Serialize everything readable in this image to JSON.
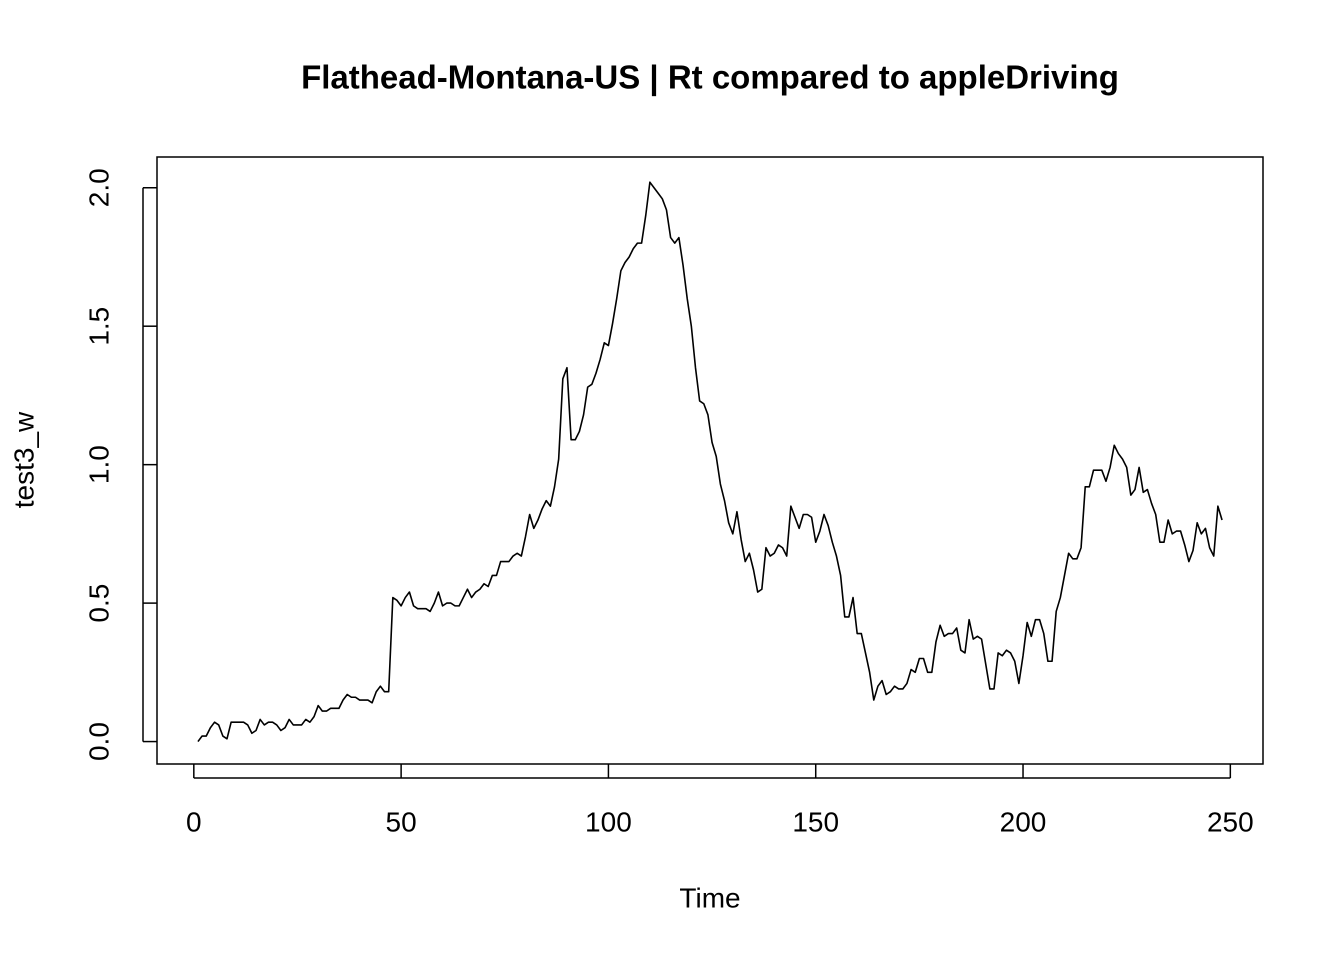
{
  "chart_data": {
    "type": "line",
    "title": "Flathead-Montana-US | Rt compared to appleDriving",
    "x_label": "Time",
    "y_label": "test3_w",
    "x": [
      1,
      2,
      3,
      4,
      5,
      6,
      7,
      8,
      9,
      10,
      11,
      12,
      13,
      14,
      15,
      16,
      17,
      18,
      19,
      20,
      21,
      22,
      23,
      24,
      25,
      26,
      27,
      28,
      29,
      30,
      31,
      32,
      33,
      34,
      35,
      36,
      37,
      38,
      39,
      40,
      41,
      42,
      43,
      44,
      45,
      46,
      47,
      48,
      49,
      50,
      51,
      52,
      53,
      54,
      55,
      56,
      57,
      58,
      59,
      60,
      61,
      62,
      63,
      64,
      65,
      66,
      67,
      68,
      69,
      70,
      71,
      72,
      73,
      74,
      75,
      76,
      77,
      78,
      79,
      80,
      81,
      82,
      83,
      84,
      85,
      86,
      87,
      88,
      89,
      90,
      91,
      92,
      93,
      94,
      95,
      96,
      97,
      98,
      99,
      100,
      101,
      102,
      103,
      104,
      105,
      106,
      107,
      108,
      109,
      110,
      111,
      112,
      113,
      114,
      115,
      116,
      117,
      118,
      119,
      120,
      121,
      122,
      123,
      124,
      125,
      126,
      127,
      128,
      129,
      130,
      131,
      132,
      133,
      134,
      135,
      136,
      137,
      138,
      139,
      140,
      141,
      142,
      143,
      144,
      145,
      146,
      147,
      148,
      149,
      150,
      151,
      152,
      153,
      154,
      155,
      156,
      157,
      158,
      159,
      160,
      161,
      162,
      163,
      164,
      165,
      166,
      167,
      168,
      169,
      170,
      171,
      172,
      173,
      174,
      175,
      176,
      177,
      178,
      179,
      180,
      181,
      182,
      183,
      184,
      185,
      186,
      187,
      188,
      189,
      190,
      191,
      192,
      193,
      194,
      195,
      196,
      197,
      198,
      199,
      200,
      201,
      202,
      203,
      204,
      205,
      206,
      207,
      208,
      209,
      210,
      211,
      212,
      213,
      214,
      215,
      216,
      217,
      218,
      219,
      220,
      221,
      222,
      223,
      224,
      225,
      226,
      227,
      228,
      229,
      230,
      231,
      232,
      233,
      234,
      235,
      236,
      237,
      238,
      239,
      240,
      241,
      242,
      243,
      244,
      245,
      246,
      247,
      248
    ],
    "values": [
      0.0,
      0.02,
      0.02,
      0.05,
      0.07,
      0.06,
      0.02,
      0.01,
      0.07,
      0.07,
      0.07,
      0.07,
      0.06,
      0.03,
      0.04,
      0.08,
      0.06,
      0.07,
      0.07,
      0.06,
      0.04,
      0.05,
      0.08,
      0.06,
      0.06,
      0.06,
      0.08,
      0.07,
      0.09,
      0.13,
      0.11,
      0.11,
      0.12,
      0.12,
      0.12,
      0.15,
      0.17,
      0.16,
      0.16,
      0.15,
      0.15,
      0.15,
      0.14,
      0.18,
      0.2,
      0.18,
      0.18,
      0.52,
      0.51,
      0.49,
      0.52,
      0.54,
      0.49,
      0.48,
      0.48,
      0.48,
      0.47,
      0.5,
      0.54,
      0.49,
      0.5,
      0.5,
      0.49,
      0.49,
      0.52,
      0.55,
      0.52,
      0.54,
      0.55,
      0.57,
      0.56,
      0.6,
      0.6,
      0.65,
      0.65,
      0.65,
      0.67,
      0.68,
      0.67,
      0.74,
      0.82,
      0.77,
      0.8,
      0.84,
      0.87,
      0.85,
      0.92,
      1.02,
      1.31,
      1.35,
      1.09,
      1.09,
      1.12,
      1.18,
      1.28,
      1.29,
      1.33,
      1.38,
      1.44,
      1.43,
      1.51,
      1.6,
      1.7,
      1.73,
      1.75,
      1.78,
      1.8,
      1.8,
      1.9,
      2.02,
      2.0,
      1.98,
      1.96,
      1.92,
      1.82,
      1.8,
      1.82,
      1.72,
      1.6,
      1.5,
      1.35,
      1.23,
      1.22,
      1.18,
      1.08,
      1.03,
      0.93,
      0.87,
      0.79,
      0.75,
      0.83,
      0.73,
      0.65,
      0.68,
      0.62,
      0.54,
      0.55,
      0.7,
      0.67,
      0.68,
      0.71,
      0.7,
      0.67,
      0.85,
      0.81,
      0.77,
      0.82,
      0.82,
      0.81,
      0.72,
      0.76,
      0.82,
      0.78,
      0.72,
      0.67,
      0.6,
      0.45,
      0.45,
      0.52,
      0.39,
      0.39,
      0.32,
      0.25,
      0.15,
      0.2,
      0.22,
      0.17,
      0.18,
      0.2,
      0.19,
      0.19,
      0.21,
      0.26,
      0.25,
      0.3,
      0.3,
      0.25,
      0.25,
      0.36,
      0.42,
      0.38,
      0.39,
      0.39,
      0.41,
      0.33,
      0.32,
      0.44,
      0.37,
      0.38,
      0.37,
      0.28,
      0.19,
      0.19,
      0.32,
      0.31,
      0.33,
      0.32,
      0.29,
      0.21,
      0.31,
      0.43,
      0.38,
      0.44,
      0.44,
      0.39,
      0.29,
      0.29,
      0.47,
      0.52,
      0.6,
      0.68,
      0.66,
      0.66,
      0.7,
      0.92,
      0.92,
      0.98,
      0.98,
      0.98,
      0.94,
      0.99,
      1.07,
      1.04,
      1.02,
      0.99,
      0.89,
      0.91,
      0.99,
      0.9,
      0.91,
      0.86,
      0.82,
      0.72,
      0.72,
      0.8,
      0.75,
      0.76,
      0.76,
      0.71,
      0.65,
      0.69,
      0.79,
      0.75,
      0.77,
      0.7,
      0.67,
      0.85,
      0.8
    ],
    "color": "#000000",
    "xlim": [
      -8.88,
      257.88
    ],
    "ylim": [
      -0.081,
      2.111
    ],
    "xticks": [
      0,
      50,
      100,
      150,
      200,
      250
    ],
    "yticks": [
      {
        "value": 0,
        "label": "0.0"
      },
      {
        "value": 0.5,
        "label": "0.5"
      },
      {
        "value": 1,
        "label": "1.0"
      },
      {
        "value": 1.5,
        "label": "1.5"
      },
      {
        "value": 2,
        "label": "2.0"
      }
    ],
    "grid": false
  }
}
